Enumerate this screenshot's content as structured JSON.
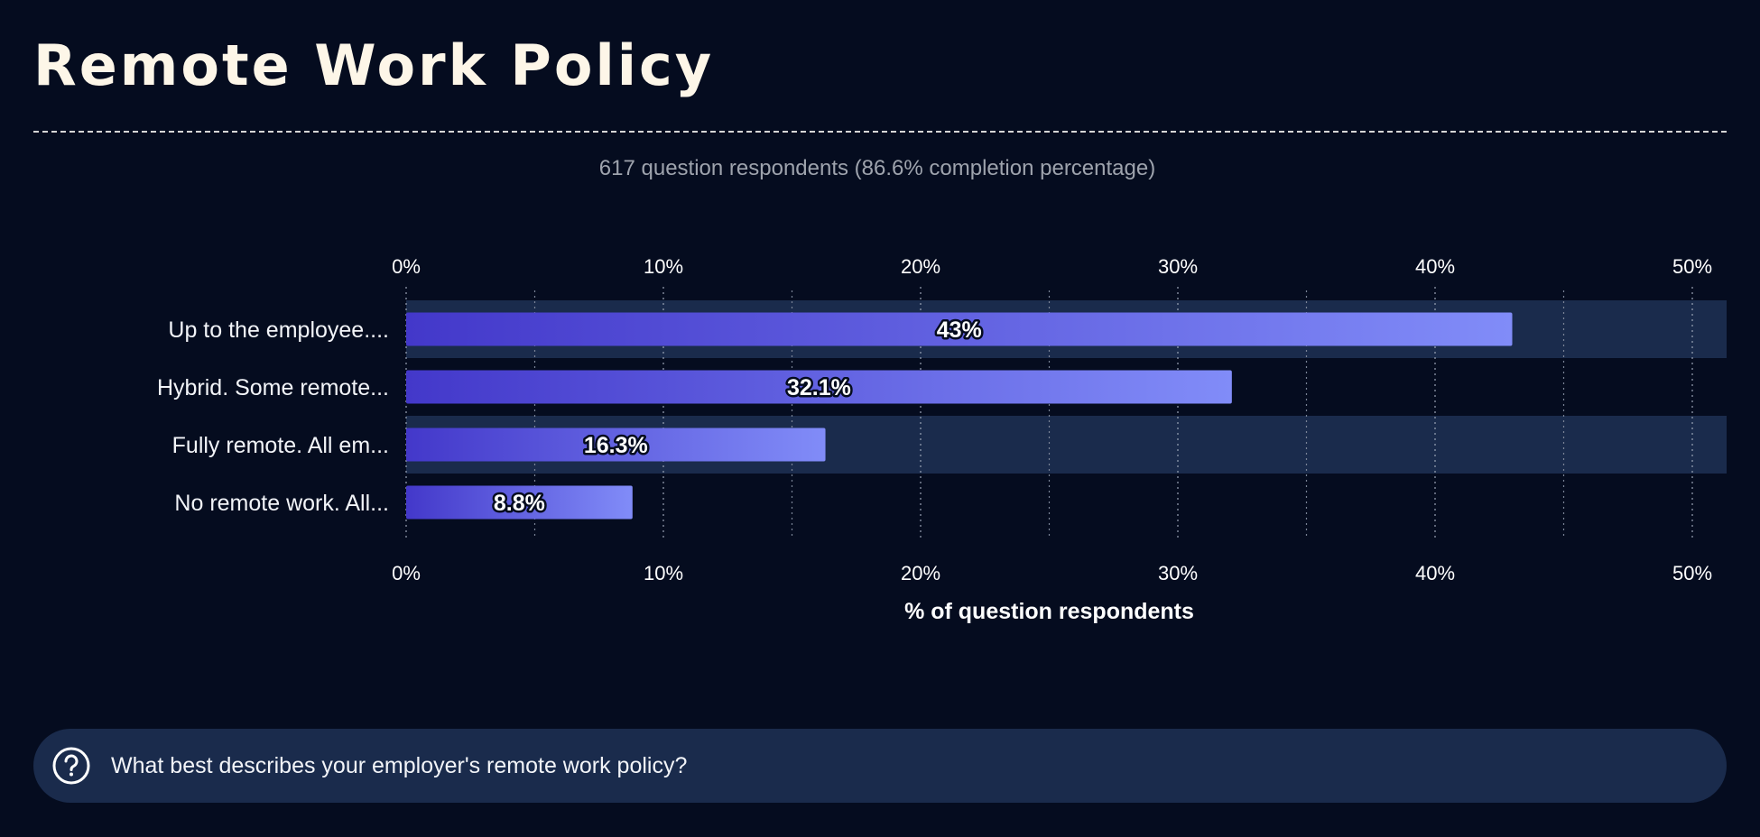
{
  "page": {
    "title": "Remote Work Policy",
    "subtitle": "617 question respondents (86.6% completion percentage)",
    "question": "What best describes your employer's remote work policy?"
  },
  "colors": {
    "background": "#050c1f",
    "stripe": "#1a2b4c",
    "bar_start": "#4338ca",
    "bar_end": "#818cf8",
    "title": "#fdf6e8",
    "muted": "#9ea3ad"
  },
  "chart_data": {
    "type": "bar",
    "orientation": "horizontal",
    "categories": [
      "Up to the employee....",
      "Hybrid. Some remote...",
      "Fully remote. All em...",
      "No remote work. All..."
    ],
    "values": [
      43,
      32.1,
      16.3,
      8.8
    ],
    "value_labels": [
      "43%",
      "32.1%",
      "16.3%",
      "8.8%"
    ],
    "xlim": [
      0,
      50
    ],
    "ticks": [
      0,
      10,
      20,
      30,
      40,
      50
    ],
    "tick_labels": [
      "0%",
      "10%",
      "20%",
      "30%",
      "40%",
      "50%"
    ],
    "minor_ticks": [
      5,
      15,
      25,
      35,
      45
    ],
    "xlabel": "% of question respondents",
    "grid": true
  }
}
